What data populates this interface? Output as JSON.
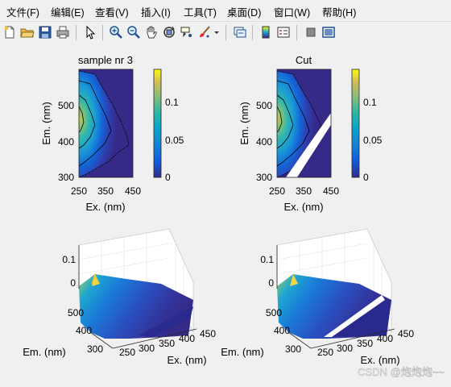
{
  "menu": [
    "文件(F)",
    "编辑(E)",
    "查看(V)",
    "插入(I)",
    "工具(T)",
    "桌面(D)",
    "窗口(W)",
    "帮助(H)"
  ],
  "toolbar": {
    "icons": [
      "new-file-icon",
      "open-folder-icon",
      "save-icon",
      "print-icon",
      "pointer-icon",
      "zoom-in-icon",
      "zoom-out-icon",
      "pan-hand-icon",
      "rotate-3d-icon",
      "data-cursor-icon",
      "brush-icon",
      "brush-dropdown-icon",
      "link-plot-icon",
      "colorbar-icon",
      "legend-icon",
      "hide-plot-tools-icon",
      "show-plot-tools-icon"
    ]
  },
  "plots": {
    "top_left": {
      "title": "sample nr 3",
      "xlabel": "Ex. (nm)",
      "ylabel": "Em. (nm)",
      "xticks": [
        "250",
        "350",
        "450"
      ],
      "yticks": [
        "300",
        "400",
        "500"
      ],
      "cbar_ticks": [
        "0",
        "0.05",
        "0.1"
      ]
    },
    "top_right": {
      "title": "Cut",
      "xlabel": "Ex. (nm)",
      "ylabel": "Em. (nm)",
      "xticks": [
        "250",
        "350",
        "450"
      ],
      "yticks": [
        "300",
        "400",
        "500"
      ],
      "cbar_ticks": [
        "0",
        "0.05",
        "0.1"
      ]
    },
    "bottom_left": {
      "zticks": [
        "0.1",
        "0"
      ],
      "yticks": [
        "500",
        "400",
        "300"
      ],
      "xticks": [
        "250",
        "300",
        "350",
        "400",
        "450"
      ],
      "xlabel": "Ex. (nm)",
      "ylabel": "Em. (nm)"
    },
    "bottom_right": {
      "zticks": [
        "0.1",
        "0"
      ],
      "yticks": [
        "500",
        "400",
        "300"
      ],
      "xticks": [
        "250",
        "300",
        "350",
        "400",
        "450"
      ],
      "xlabel": "Ex. (nm)",
      "ylabel": "Em. (nm)"
    }
  },
  "watermark": "CSDN @炮炮炮~~",
  "colors": {
    "parula_low": "#352a87",
    "parula_mid": "#1fa2d1",
    "parula_high": "#f9fb0e"
  }
}
